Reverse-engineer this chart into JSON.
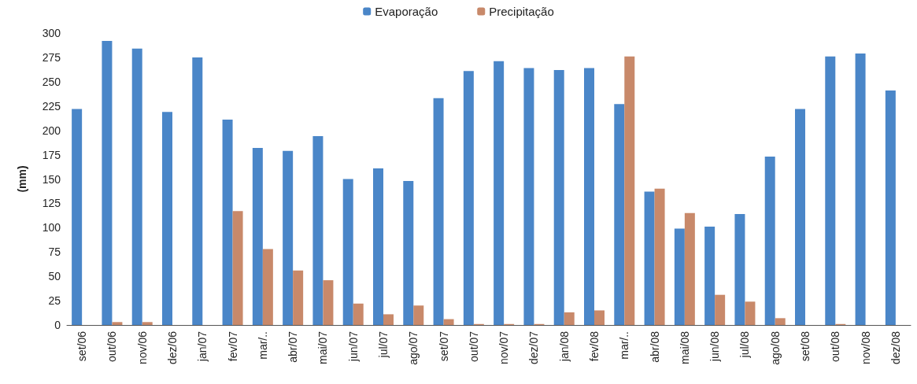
{
  "chart_data": {
    "type": "bar",
    "ylabel": "(mm)",
    "categories": [
      "set/06",
      "out/06",
      "nov/06",
      "dez/06",
      "jan/07",
      "fev/07",
      "mar/..",
      "abr/07",
      "mai/07",
      "jun/07",
      "jul/07",
      "ago/07",
      "set/07",
      "out/07",
      "nov/07",
      "dez/07",
      "jan/08",
      "fev/08",
      "mar/..",
      "abr/08",
      "mai/08",
      "jun/08",
      "jul/08",
      "ago/08",
      "set/08",
      "out/08",
      "nov/08",
      "dez/08"
    ],
    "series": [
      {
        "name": "Evaporação",
        "color": "#4a86c8",
        "values": [
          222,
          292,
          284,
          219,
          275,
          211,
          182,
          179,
          194,
          150,
          161,
          148,
          233,
          261,
          271,
          264,
          262,
          264,
          227,
          137,
          99,
          101,
          114,
          173,
          222,
          276,
          279,
          241
        ]
      },
      {
        "name": "Precipitação",
        "color": "#c8896a",
        "values": [
          0,
          3,
          3,
          0,
          0,
          117,
          78,
          56,
          46,
          22,
          11,
          20,
          6,
          1,
          1,
          1,
          13,
          15,
          276,
          140,
          115,
          31,
          24,
          7,
          0,
          1,
          0,
          0
        ]
      }
    ],
    "ylim": [
      0,
      300
    ],
    "yticks": [
      0,
      25,
      50,
      75,
      100,
      125,
      150,
      175,
      200,
      225,
      250,
      275,
      300
    ],
    "grid": false,
    "legend": "top"
  }
}
